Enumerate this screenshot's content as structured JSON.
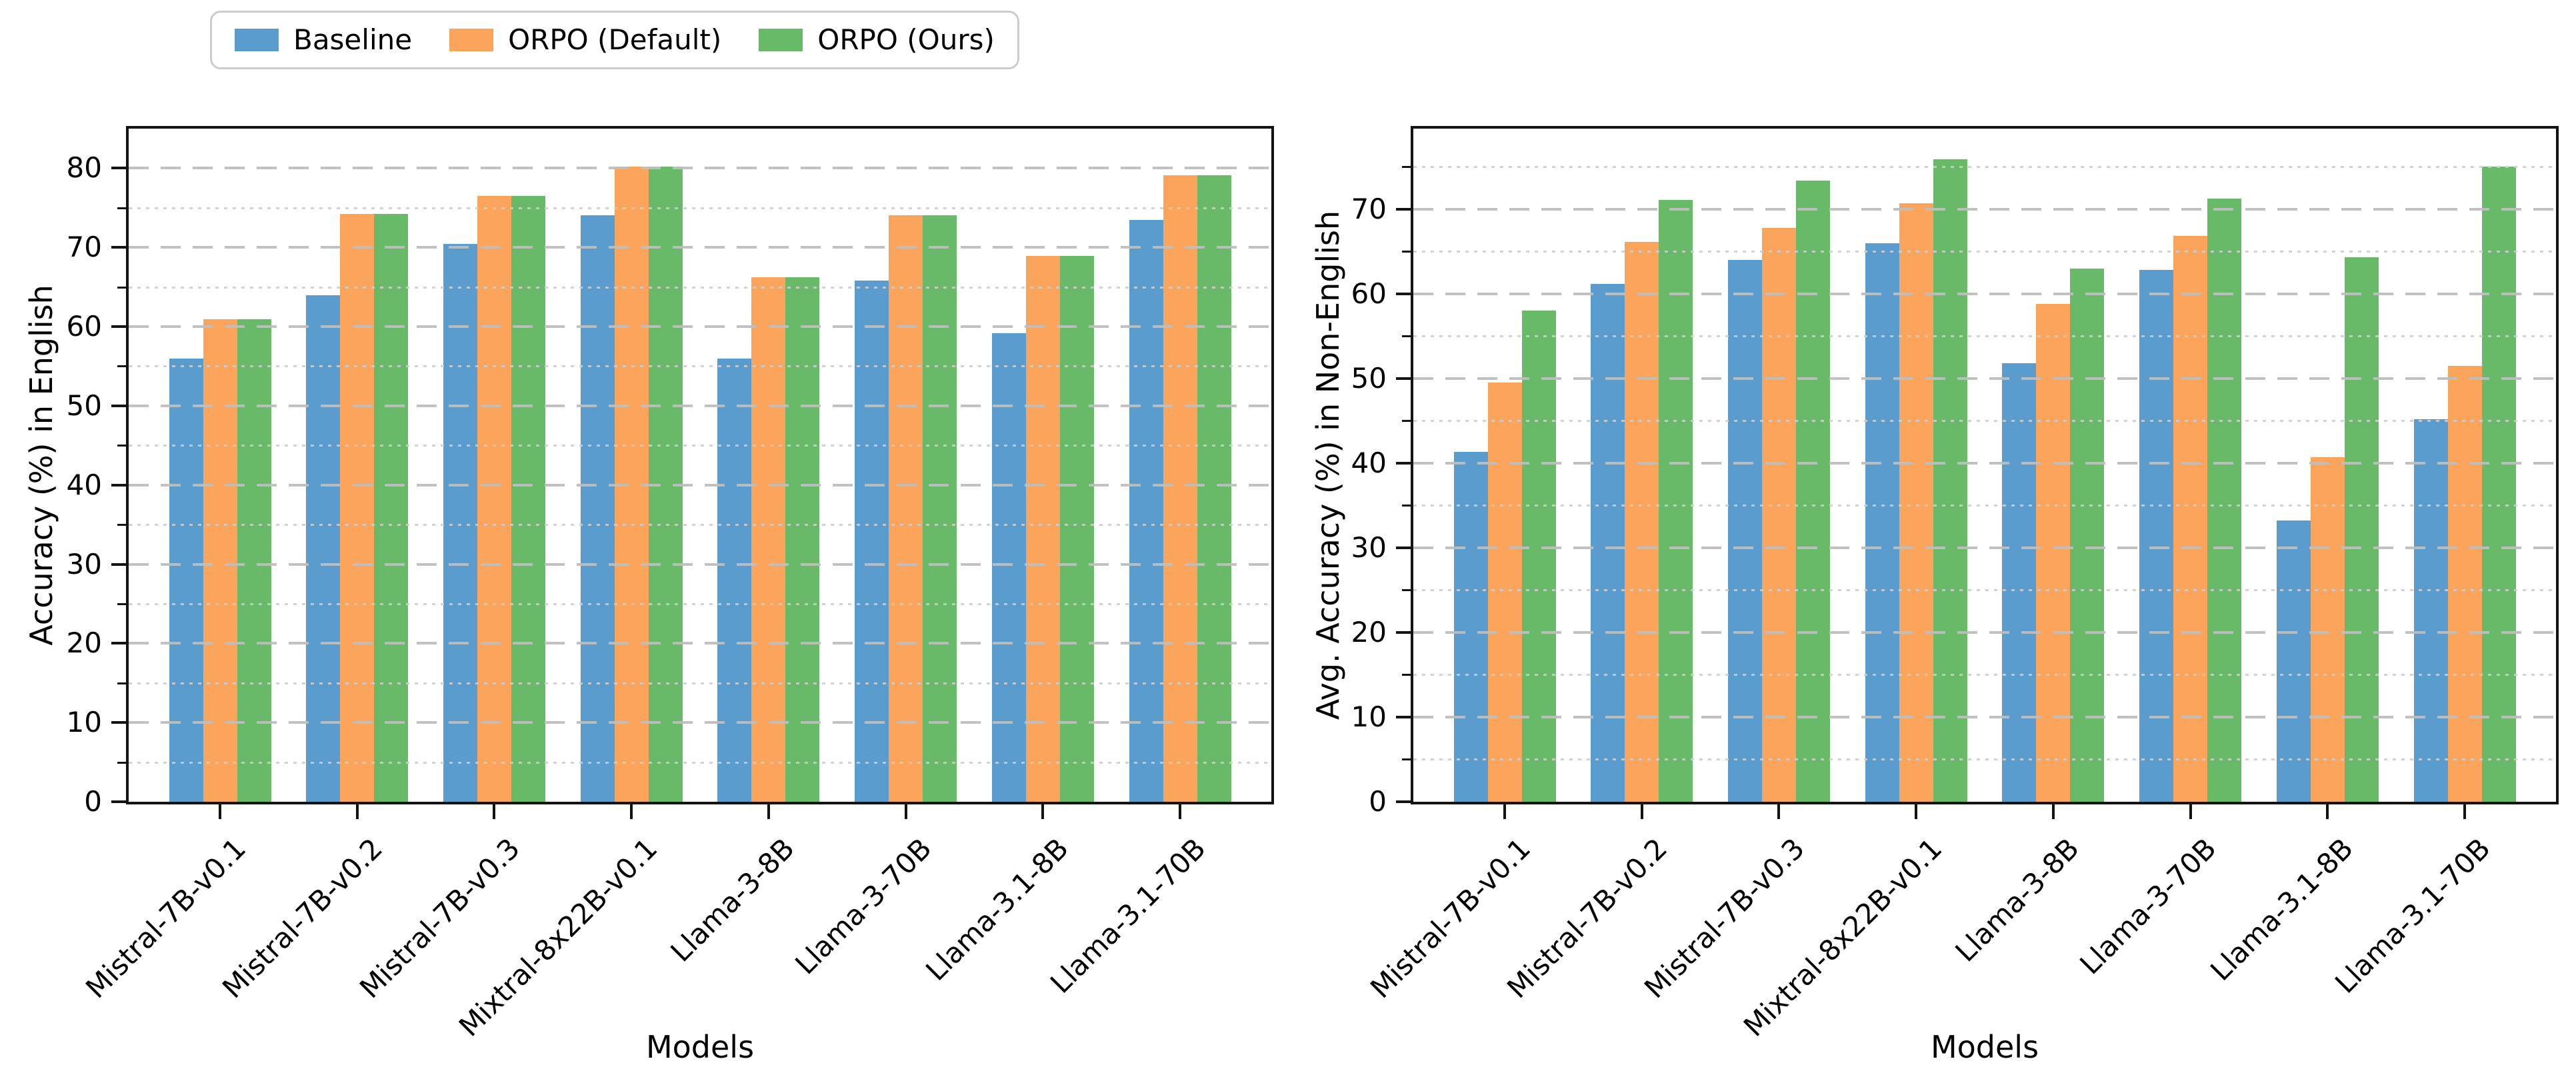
{
  "legend": {
    "items": [
      {
        "label": "Baseline",
        "color": "#5b9cce"
      },
      {
        "label": "ORPO (Default)",
        "color": "#fba55c"
      },
      {
        "label": "ORPO (Ours)",
        "color": "#68ba68"
      }
    ]
  },
  "colors": {
    "baseline": "#5b9cce",
    "orpo_default": "#fba55c",
    "orpo_ours": "#68ba68",
    "spine": "#141414",
    "grid_major": "#bebebe",
    "grid_minor": "#cdcdcd"
  },
  "chart_data": [
    {
      "type": "bar",
      "ylabel": "Accuracy (%) in English",
      "xlabel": "Models",
      "ylim": [
        0,
        85
      ],
      "yticks": [
        0,
        10,
        20,
        30,
        40,
        50,
        60,
        70,
        80
      ],
      "minor_step": 5,
      "grid": true,
      "legend_position": "top-left-above-figure",
      "categories": [
        "Mistral-7B-v0.1",
        "Mistral-7B-v0.2",
        "Mistral-7B-v0.3",
        "Mixtral-8x22B-v0.1",
        "Llama-3-8B",
        "Llama-3-70B",
        "Llama-3.1-8B",
        "Llama-3.1-70B"
      ],
      "series": [
        {
          "name": "Baseline",
          "values": [
            56.0,
            64.0,
            70.4,
            74.1,
            56.0,
            65.8,
            59.2,
            73.5
          ]
        },
        {
          "name": "ORPO (Default)",
          "values": [
            60.9,
            74.2,
            76.5,
            80.2,
            66.2,
            74.1,
            68.9,
            79.1
          ]
        },
        {
          "name": "ORPO (Ours)",
          "values": [
            60.9,
            74.2,
            76.5,
            80.2,
            66.2,
            74.1,
            68.9,
            79.1
          ]
        }
      ]
    },
    {
      "type": "bar",
      "ylabel": "Avg. Accuracy (%) in Non-English",
      "xlabel": "Models",
      "ylim": [
        0,
        79.5
      ],
      "yticks": [
        0,
        10,
        20,
        30,
        40,
        50,
        60,
        70
      ],
      "minor_step": 5,
      "grid": true,
      "categories": [
        "Mistral-7B-v0.1",
        "Mistral-7B-v0.2",
        "Mistral-7B-v0.3",
        "Mixtral-8x22B-v0.1",
        "Llama-3-8B",
        "Llama-3-70B",
        "Llama-3.1-8B",
        "Llama-3.1-70B"
      ],
      "series": [
        {
          "name": "Baseline",
          "values": [
            41.3,
            61.2,
            64.0,
            66.0,
            51.8,
            62.8,
            33.2,
            45.2
          ]
        },
        {
          "name": "ORPO (Default)",
          "values": [
            49.5,
            66.1,
            67.8,
            70.7,
            58.8,
            66.8,
            40.7,
            51.5
          ]
        },
        {
          "name": "ORPO (Ours)",
          "values": [
            58.0,
            71.1,
            73.4,
            75.9,
            63.0,
            71.2,
            64.3,
            75.0
          ]
        }
      ]
    }
  ]
}
